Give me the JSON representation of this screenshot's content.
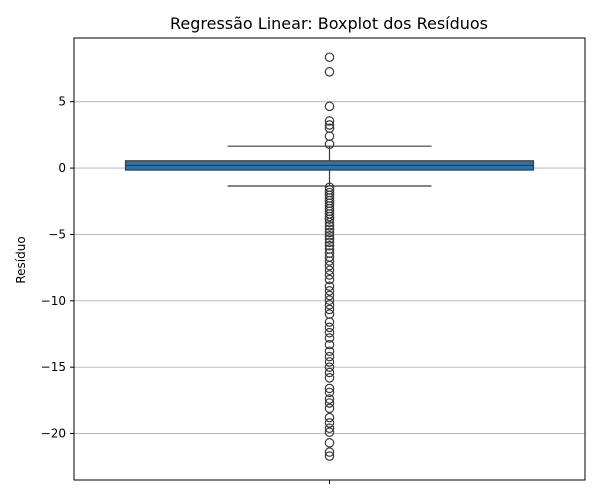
{
  "chart_data": {
    "type": "box",
    "title": "Regressão Linear: Boxplot dos Resíduos",
    "xlabel": "",
    "ylabel": "Resíduo",
    "ylim": [
      -23.5,
      9.8
    ],
    "yticks": [
      5,
      0,
      -5,
      -10,
      -15,
      -20
    ],
    "ytick_labels": [
      "5",
      "0",
      "−5",
      "−10",
      "−15",
      "−20"
    ],
    "grid": true,
    "box": {
      "q1": -0.15,
      "median": 0.2,
      "q3": 0.55,
      "whisker_low": -1.35,
      "whisker_high": 1.65,
      "color": "#2e72a8"
    },
    "outliers": [
      8.35,
      7.25,
      4.65,
      3.55,
      3.25,
      3.0,
      2.4,
      1.8,
      -1.45,
      -1.65,
      -1.85,
      -2.05,
      -2.25,
      -2.45,
      -2.65,
      -2.85,
      -3.05,
      -3.25,
      -3.45,
      -3.65,
      -3.85,
      -4.1,
      -4.35,
      -4.6,
      -4.85,
      -5.1,
      -5.35,
      -5.6,
      -5.85,
      -6.1,
      -6.4,
      -6.7,
      -7.0,
      -7.35,
      -7.7,
      -8.05,
      -8.4,
      -8.9,
      -9.25,
      -9.6,
      -9.95,
      -10.3,
      -10.65,
      -11.0,
      -11.6,
      -12.0,
      -12.4,
      -12.8,
      -13.3,
      -13.8,
      -14.2,
      -14.6,
      -15.0,
      -15.4,
      -15.8,
      -16.6,
      -16.9,
      -17.4,
      -17.7,
      -18.1,
      -18.8,
      -19.2,
      -19.6,
      -19.9,
      -20.7,
      -21.4,
      -21.7
    ],
    "colors": {
      "grid": "#b0b0b0",
      "axes": "#000000",
      "whisker": "#3b3b3b",
      "outlier_edge": "#3b3b3b"
    }
  }
}
